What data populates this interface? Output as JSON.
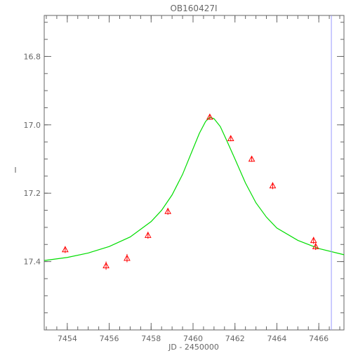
{
  "chart_data": {
    "type": "scatter",
    "title": "OB160427I",
    "xlabel": "JD - 2450000",
    "ylabel": "I",
    "xlim": [
      7452.9,
      7467.2
    ],
    "ylim": [
      17.6,
      16.68
    ],
    "y_inverted": true,
    "x_major_ticks": [
      7454,
      7456,
      7458,
      7460,
      7462,
      7464,
      7466
    ],
    "x_minor_step": 0.5,
    "y_major_ticks": [
      16.8,
      17.0,
      17.2,
      17.4
    ],
    "y_minor_step": 0.05,
    "x_tick_labels": [
      "7454",
      "7456",
      "7458",
      "7460",
      "7462",
      "7464",
      "7466"
    ],
    "y_tick_labels": [
      "16.8",
      "17.0",
      "17.2",
      "17.4"
    ],
    "series": [
      {
        "kind": "points",
        "marker": "triangle",
        "color": "#ff0000",
        "points": [
          {
            "x": 7453.9,
            "y": 17.365,
            "err": 0.01
          },
          {
            "x": 7455.85,
            "y": 17.412,
            "err": 0.012
          },
          {
            "x": 7456.85,
            "y": 17.39,
            "err": 0.012
          },
          {
            "x": 7457.85,
            "y": 17.323,
            "err": 0.01
          },
          {
            "x": 7458.8,
            "y": 17.253,
            "err": 0.01
          },
          {
            "x": 7460.8,
            "y": 16.977,
            "err": 0.008
          },
          {
            "x": 7461.8,
            "y": 17.04,
            "err": 0.008
          },
          {
            "x": 7462.8,
            "y": 17.1,
            "err": 0.008
          },
          {
            "x": 7463.8,
            "y": 17.178,
            "err": 0.01
          },
          {
            "x": 7465.75,
            "y": 17.338,
            "err": 0.01
          },
          {
            "x": 7465.85,
            "y": 17.356,
            "err": 0.01
          }
        ]
      },
      {
        "kind": "line",
        "color": "#00dd00",
        "points": [
          {
            "x": 7452.9,
            "y": 17.397
          },
          {
            "x": 7454.0,
            "y": 17.388
          },
          {
            "x": 7455.0,
            "y": 17.375
          },
          {
            "x": 7456.0,
            "y": 17.356
          },
          {
            "x": 7457.0,
            "y": 17.328
          },
          {
            "x": 7458.0,
            "y": 17.283
          },
          {
            "x": 7458.5,
            "y": 17.25
          },
          {
            "x": 7459.0,
            "y": 17.205
          },
          {
            "x": 7459.5,
            "y": 17.145
          },
          {
            "x": 7460.0,
            "y": 17.07
          },
          {
            "x": 7460.3,
            "y": 17.025
          },
          {
            "x": 7460.6,
            "y": 16.99
          },
          {
            "x": 7460.8,
            "y": 16.978
          },
          {
            "x": 7461.0,
            "y": 16.982
          },
          {
            "x": 7461.3,
            "y": 17.005
          },
          {
            "x": 7461.6,
            "y": 17.045
          },
          {
            "x": 7462.0,
            "y": 17.1
          },
          {
            "x": 7462.5,
            "y": 17.17
          },
          {
            "x": 7463.0,
            "y": 17.228
          },
          {
            "x": 7463.5,
            "y": 17.27
          },
          {
            "x": 7464.0,
            "y": 17.302
          },
          {
            "x": 7465.0,
            "y": 17.338
          },
          {
            "x": 7466.0,
            "y": 17.362
          },
          {
            "x": 7467.2,
            "y": 17.38
          }
        ]
      }
    ],
    "vline": {
      "x": 7466.6,
      "color": "#9999ff"
    }
  }
}
